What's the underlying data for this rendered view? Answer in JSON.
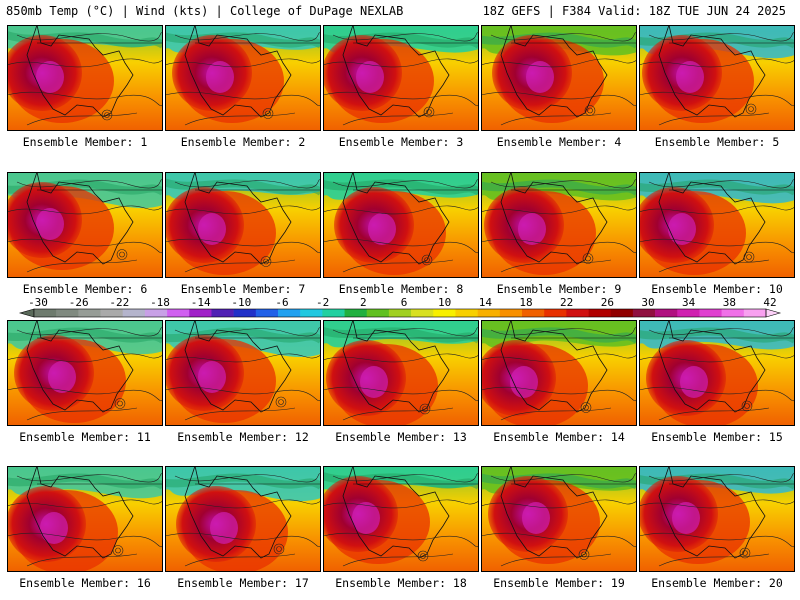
{
  "header": {
    "left": "850mb Temp (°C) | Wind (kts) | College of DuPage NEXLAB",
    "right": "18Z GEFS | F384 Valid: 18Z TUE JUN 24 2025"
  },
  "member_label_prefix": "Ensemble Member: ",
  "members": [
    {
      "number": "1",
      "label": "Ensemble Member: 1"
    },
    {
      "number": "2",
      "label": "Ensemble Member: 2"
    },
    {
      "number": "3",
      "label": "Ensemble Member: 3"
    },
    {
      "number": "4",
      "label": "Ensemble Member: 4"
    },
    {
      "number": "5",
      "label": "Ensemble Member: 5"
    },
    {
      "number": "6",
      "label": "Ensemble Member: 6"
    },
    {
      "number": "7",
      "label": "Ensemble Member: 7"
    },
    {
      "number": "8",
      "label": "Ensemble Member: 8"
    },
    {
      "number": "9",
      "label": "Ensemble Member: 9"
    },
    {
      "number": "10",
      "label": "Ensemble Member: 10"
    },
    {
      "number": "11",
      "label": "Ensemble Member: 11"
    },
    {
      "number": "12",
      "label": "Ensemble Member: 12"
    },
    {
      "number": "13",
      "label": "Ensemble Member: 13"
    },
    {
      "number": "14",
      "label": "Ensemble Member: 14"
    },
    {
      "number": "15",
      "label": "Ensemble Member: 15"
    },
    {
      "number": "16",
      "label": "Ensemble Member: 16"
    },
    {
      "number": "17",
      "label": "Ensemble Member: 17"
    },
    {
      "number": "18",
      "label": "Ensemble Member: 18"
    },
    {
      "number": "19",
      "label": "Ensemble Member: 19"
    },
    {
      "number": "20",
      "label": "Ensemble Member: 20"
    }
  ],
  "colorbar": {
    "tick_labels": [
      "-30",
      "-26",
      "-22",
      "-18",
      "-14",
      "-10",
      "-6",
      "-2",
      "2",
      "6",
      "10",
      "14",
      "18",
      "22",
      "26",
      "30",
      "34",
      "38",
      "42"
    ],
    "colors": [
      "#6e7b6e",
      "#808a80",
      "#969c96",
      "#aaaaaa",
      "#b4b4cc",
      "#c8a0e6",
      "#d060f0",
      "#a020c8",
      "#5020b4",
      "#2030c8",
      "#2060e8",
      "#20a0f0",
      "#20c8e0",
      "#20d0a0",
      "#20b040",
      "#60c020",
      "#a0d020",
      "#d8e020",
      "#f8f000",
      "#f8d000",
      "#f8b000",
      "#f89000",
      "#f06000",
      "#e83000",
      "#d01010",
      "#b00000",
      "#900000",
      "#901040",
      "#b01080",
      "#d020b0",
      "#e040d0",
      "#f070e8",
      "#f8a0f0"
    ]
  }
}
